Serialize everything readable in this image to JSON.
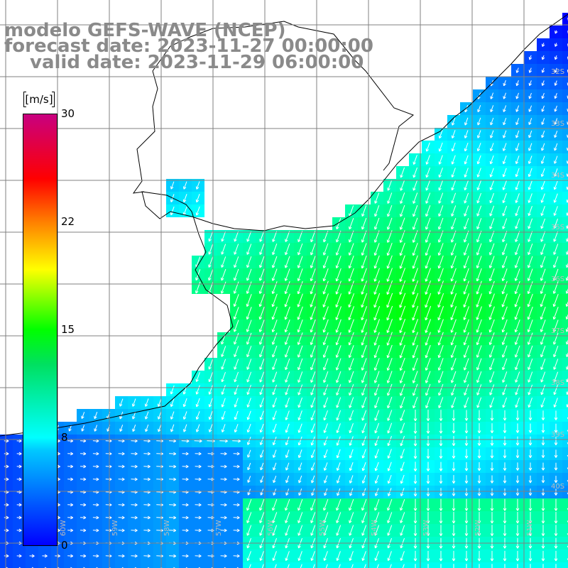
{
  "title": {
    "line1": "modelo GEFS-WAVE (NCEP)",
    "line2": "forecast date: 2023-11-27 00:00:00",
    "line3": "valid date: 2023-11-29 06:00:00"
  },
  "colorbar": {
    "units": "[m/s]",
    "ticks": [
      "30",
      "22",
      "15",
      "8",
      "0"
    ],
    "range": [
      0,
      30
    ],
    "stops": [
      {
        "value": 0,
        "color": "#0000ff"
      },
      {
        "value": 7.5,
        "color": "#00ffff"
      },
      {
        "value": 15,
        "color": "#00ff00"
      },
      {
        "value": 19,
        "color": "#ffff00"
      },
      {
        "value": 22,
        "color": "#ff8000"
      },
      {
        "value": 25.5,
        "color": "#ff0000"
      },
      {
        "value": 30,
        "color": "#c80080"
      }
    ]
  },
  "map": {
    "variable": "10 m wind speed with direction arrows",
    "lat_labels": [
      "32S",
      "33S",
      "34S",
      "35S",
      "36S",
      "37S",
      "38S",
      "39S",
      "40S"
    ],
    "lon_labels": [
      "60W",
      "59W",
      "58W",
      "57W",
      "56W",
      "55W",
      "54W",
      "53W",
      "52W",
      "51W"
    ],
    "land_color": "#ffffff",
    "grid_color": "#808080"
  }
}
